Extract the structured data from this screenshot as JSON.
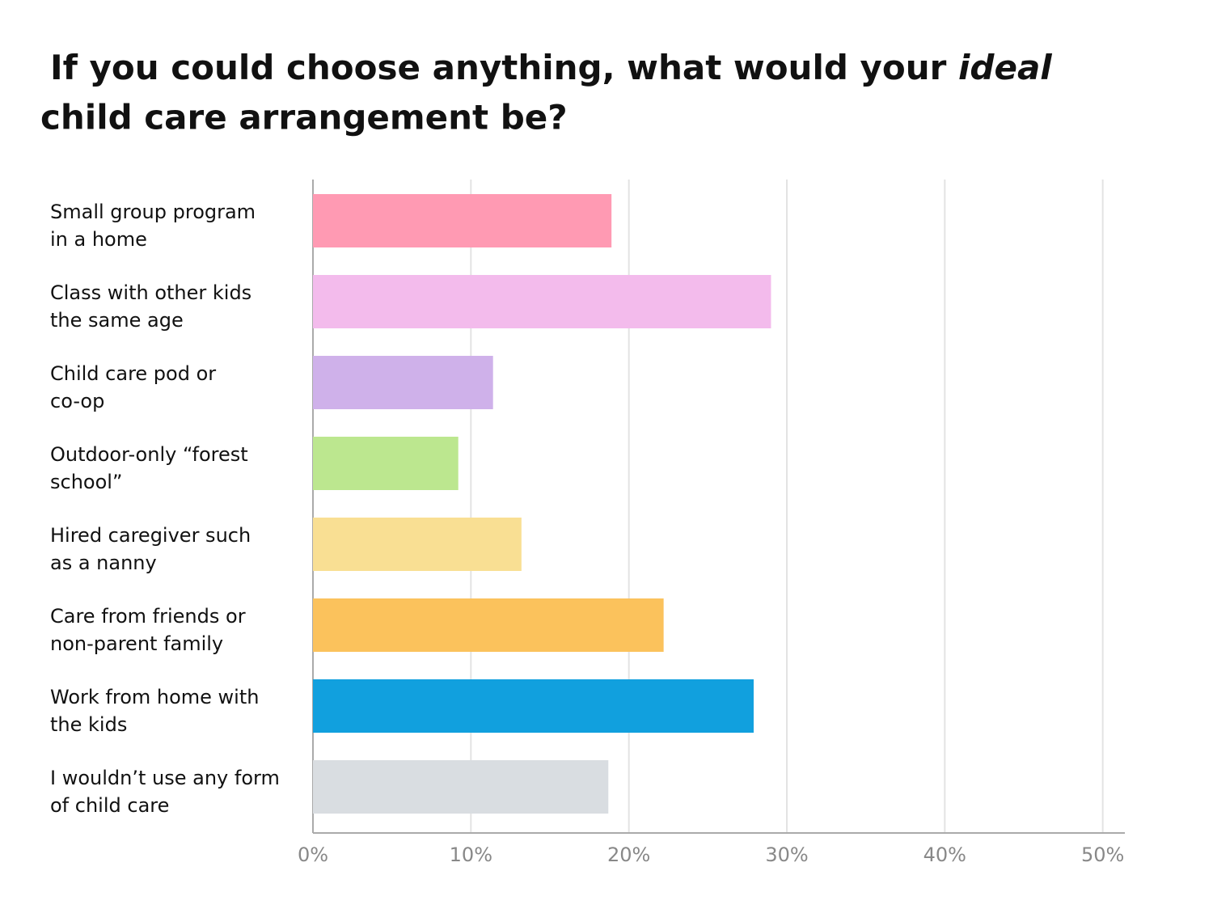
{
  "chart_data": {
    "type": "bar",
    "orientation": "horizontal",
    "title": [
      "If you could choose anything, what would your ",
      "ideal",
      " child care arrangement be?"
    ],
    "categories": [
      [
        "Small group program",
        "in a home"
      ],
      [
        "Class with other kids",
        "the same age"
      ],
      [
        "Child care pod or",
        "co-op"
      ],
      [
        "Outdoor-only “forest",
        "school”"
      ],
      [
        "Hired caregiver such",
        "as a nanny"
      ],
      [
        "Care from friends or",
        "non-parent family"
      ],
      [
        "Work from home with",
        "the kids"
      ],
      [
        "I wouldn’t use any form",
        "of child care"
      ]
    ],
    "values": [
      18.9,
      29,
      11.4,
      9.2,
      13.2,
      22.2,
      27.9,
      18.7
    ],
    "colors": [
      "#ff9ab3",
      "#f3bbec",
      "#cfb1ea",
      "#bce78f",
      "#f9df93",
      "#fbc25c",
      "#11a0de",
      "#d9dde1"
    ],
    "xlim": [
      0,
      51.4
    ],
    "xticks": [
      {
        "value": 0,
        "label": "0%"
      },
      {
        "value": 10,
        "label": "10%"
      },
      {
        "value": 20,
        "label": "20%"
      },
      {
        "value": 30,
        "label": "30%"
      },
      {
        "value": 40,
        "label": "40%"
      },
      {
        "value": 50,
        "label": "50%"
      }
    ],
    "grid": true
  }
}
